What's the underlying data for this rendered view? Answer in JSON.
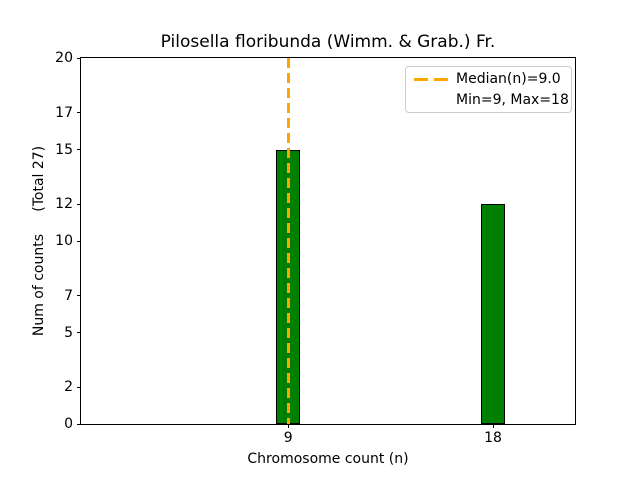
{
  "chart_data": {
    "type": "bar",
    "title": "Pilosella floribunda (Wimm. & Grab.) Fr.",
    "xlabel": "Chromosome count (n)",
    "ylabel": "Num of counts     (Total 27)",
    "categories": [
      9,
      18
    ],
    "values": [
      15,
      12
    ],
    "total_counts": 27,
    "yticks": [
      0,
      2,
      5,
      7,
      10,
      12,
      15,
      17,
      20
    ],
    "ylim": [
      0,
      20
    ],
    "xlim": [
      -0.1,
      21.6
    ],
    "bar_width": 1.05,
    "grid": false,
    "median_line": {
      "x": 9,
      "value": 9.0,
      "style": "dashed"
    },
    "min": 9,
    "max": 18,
    "legend": {
      "position": "upper right",
      "entries": [
        {
          "handle": "orange-dashed-line",
          "label": "Median(n)=9.0"
        },
        {
          "handle": "none",
          "label": "Min=9, Max=18"
        }
      ]
    },
    "colors": {
      "bar_fill": "#008000",
      "bar_edge": "#000000",
      "median_line": "#FFA500",
      "axis": "#000000",
      "legend_border": "#cccccc",
      "background": "#ffffff"
    }
  }
}
